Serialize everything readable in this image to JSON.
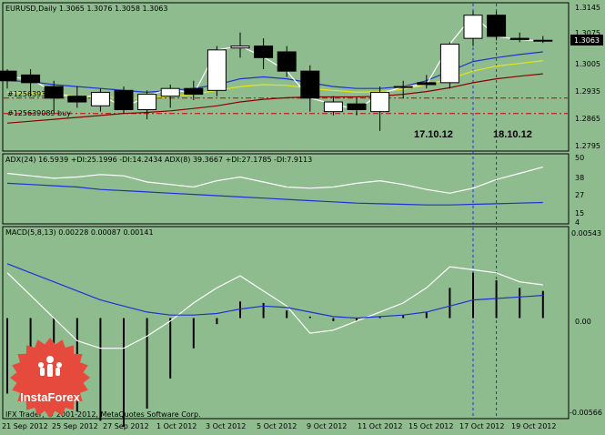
{
  "colors": {
    "background": "#8fbc8f",
    "candle_bull": "#ffffff",
    "candle_bear": "#000000",
    "ma_blue": "#1e32d2",
    "ma_yellow": "#e6e619",
    "ma_red": "#8b0000",
    "white_line": "#ffffff",
    "order_line": "#cc0000",
    "vline": "#1e32d2",
    "badge": "#e64a3c"
  },
  "header": {
    "main": "EURUSD,Daily  1.3065 1.3076 1.3058 1.3063",
    "adx": "ADX(24) 16.5939 +DI:25.1996 -DI:14.2434  ADX(8) 39.3667 +DI:27.1785 -DI:7.9113",
    "macd": "MACD(5,8,13) 0.00228 0.00087 0.00141"
  },
  "orders": {
    "line1": "#12563931",
    "line2": "#125639089 buy"
  },
  "date_marks": {
    "first": "17.10.12",
    "second": "18.10.12"
  },
  "current_price": "1.3063",
  "axes": {
    "price_ticks": [
      "1.3145",
      "1.3075",
      "1.3005",
      "1.2935",
      "1.2865",
      "1.2795"
    ],
    "adx_ticks": [
      "50",
      "38",
      "27",
      "15",
      "4"
    ],
    "macd_ticks": [
      "0.00543",
      "0.00",
      "-0.00566"
    ],
    "date_ticks": [
      "21 Sep 2012",
      "25 Sep 2012",
      "27 Sep 2012",
      "1 Oct 2012",
      "3 Oct 2012",
      "5 Oct 2012",
      "9 Oct 2012",
      "11 Oct 2012",
      "15 Oct 2012",
      "17 Oct 2012",
      "19 Oct 2012"
    ]
  },
  "copyright": "IFX Trader, © 2001-2012, MetaQuotes Software Corp.",
  "logo_text": "InstaForex",
  "chart_data": {
    "type": "candlestick",
    "candles": [
      {
        "o": 1.2985,
        "h": 1.299,
        "l": 1.294,
        "c": 1.296
      },
      {
        "o": 1.2975,
        "h": 1.299,
        "l": 1.292,
        "c": 1.2955
      },
      {
        "o": 1.2945,
        "h": 1.296,
        "l": 1.288,
        "c": 1.2915
      },
      {
        "o": 1.292,
        "h": 1.2945,
        "l": 1.289,
        "c": 1.2905
      },
      {
        "o": 1.2895,
        "h": 1.294,
        "l": 1.288,
        "c": 1.293
      },
      {
        "o": 1.2935,
        "h": 1.2945,
        "l": 1.2875,
        "c": 1.2885
      },
      {
        "o": 1.2885,
        "h": 1.2935,
        "l": 1.286,
        "c": 1.2925
      },
      {
        "o": 1.292,
        "h": 1.295,
        "l": 1.289,
        "c": 1.294
      },
      {
        "o": 1.294,
        "h": 1.296,
        "l": 1.291,
        "c": 1.2925
      },
      {
        "o": 1.2935,
        "h": 1.305,
        "l": 1.292,
        "c": 1.304
      },
      {
        "o": 1.3045,
        "h": 1.3085,
        "l": 1.302,
        "c": 1.305
      },
      {
        "o": 1.305,
        "h": 1.307,
        "l": 1.299,
        "c": 1.302
      },
      {
        "o": 1.3035,
        "h": 1.305,
        "l": 1.297,
        "c": 1.2985
      },
      {
        "o": 1.2985,
        "h": 1.3,
        "l": 1.288,
        "c": 1.2915
      },
      {
        "o": 1.288,
        "h": 1.292,
        "l": 1.287,
        "c": 1.2905
      },
      {
        "o": 1.29,
        "h": 1.2915,
        "l": 1.287,
        "c": 1.2885
      },
      {
        "o": 1.288,
        "h": 1.2945,
        "l": 1.283,
        "c": 1.293
      },
      {
        "o": 1.2945,
        "h": 1.296,
        "l": 1.2915,
        "c": 1.2945
      },
      {
        "o": 1.2955,
        "h": 1.2975,
        "l": 1.294,
        "c": 1.295
      },
      {
        "o": 1.2955,
        "h": 1.306,
        "l": 1.294,
        "c": 1.3055
      },
      {
        "o": 1.307,
        "h": 1.314,
        "l": 1.305,
        "c": 1.313
      },
      {
        "o": 1.313,
        "h": 1.314,
        "l": 1.3065,
        "c": 1.3075
      },
      {
        "o": 1.307,
        "h": 1.3085,
        "l": 1.306,
        "c": 1.3067
      },
      {
        "o": 1.3065,
        "h": 1.3076,
        "l": 1.3058,
        "c": 1.3063
      }
    ],
    "ma_blue": [
      1.296,
      1.2958,
      1.295,
      1.2945,
      1.294,
      1.2935,
      1.293,
      1.2935,
      1.294,
      1.295,
      1.2965,
      1.297,
      1.2965,
      1.2955,
      1.2945,
      1.294,
      1.294,
      1.2945,
      1.296,
      1.2985,
      1.301,
      1.302,
      1.3028,
      1.3035
    ],
    "ma_yellow": [
      1.293,
      1.2928,
      1.2925,
      1.292,
      1.2918,
      1.2915,
      1.2915,
      1.292,
      1.2925,
      1.2935,
      1.2945,
      1.295,
      1.2948,
      1.294,
      1.2935,
      1.293,
      1.2932,
      1.2938,
      1.295,
      1.2965,
      1.2985,
      1.2998,
      1.3005,
      1.3012
    ],
    "ma_red": [
      1.285,
      1.2855,
      1.286,
      1.2865,
      1.287,
      1.2875,
      1.2878,
      1.2882,
      1.2888,
      1.2895,
      1.2905,
      1.2912,
      1.2916,
      1.2918,
      1.2918,
      1.2918,
      1.292,
      1.2925,
      1.2932,
      1.2942,
      1.2955,
      1.2965,
      1.2972,
      1.2978
    ],
    "close_line": [
      1.297,
      1.2965,
      1.293,
      1.2915,
      1.2925,
      1.289,
      1.292,
      1.294,
      1.2925,
      1.304,
      1.305,
      1.3022,
      1.2985,
      1.2915,
      1.29,
      1.2885,
      1.2925,
      1.2945,
      1.295,
      1.3055,
      1.313,
      1.3075,
      1.3067,
      1.3063
    ],
    "order_levels": [
      1.2915,
      1.2875
    ],
    "price_range": [
      1.278,
      1.316
    ],
    "adx_white": [
      40,
      38,
      36,
      37,
      39,
      38,
      33,
      31,
      29,
      34,
      37,
      33,
      29,
      28,
      29,
      32,
      34,
      31,
      27,
      24,
      28,
      35,
      40,
      45
    ],
    "adx_blue": [
      32,
      31,
      30,
      29,
      27,
      26,
      25,
      24,
      23,
      22,
      21,
      20,
      19,
      18,
      17,
      16,
      15.5,
      15,
      14.5,
      14.5,
      15,
      15.5,
      16,
      16.5
    ],
    "adx_range": [
      0,
      55
    ],
    "macd_hist": [
      -0.005,
      -0.0052,
      -0.0055,
      -0.0062,
      -0.0068,
      -0.0072,
      -0.006,
      -0.004,
      -0.002,
      -0.0004,
      0.0011,
      0.001,
      0.0005,
      0.0001,
      -0.0002,
      -0.0002,
      0.0001,
      0.0002,
      0.0004,
      0.002,
      0.003,
      0.0025,
      0.002,
      0.0018
    ],
    "macd_white": [
      0.003,
      0.0015,
      0.0,
      -0.0015,
      -0.002,
      -0.002,
      -0.0012,
      -0.0002,
      0.001,
      0.002,
      0.0028,
      0.0018,
      0.0008,
      -0.001,
      -0.0008,
      -0.0002,
      0.0004,
      0.001,
      0.002,
      0.0034,
      0.0032,
      0.003,
      0.0024,
      0.0022
    ],
    "macd_blue": [
      0.0036,
      0.003,
      0.0024,
      0.0018,
      0.0012,
      0.0008,
      0.0004,
      0.0002,
      0.0002,
      0.0003,
      0.0006,
      0.0008,
      0.0007,
      0.0004,
      0.0001,
      0.0,
      0.0001,
      0.0002,
      0.0004,
      0.0008,
      0.0012,
      0.0013,
      0.0014,
      0.0015
    ],
    "macd_range": [
      -0.0066,
      0.006
    ]
  }
}
